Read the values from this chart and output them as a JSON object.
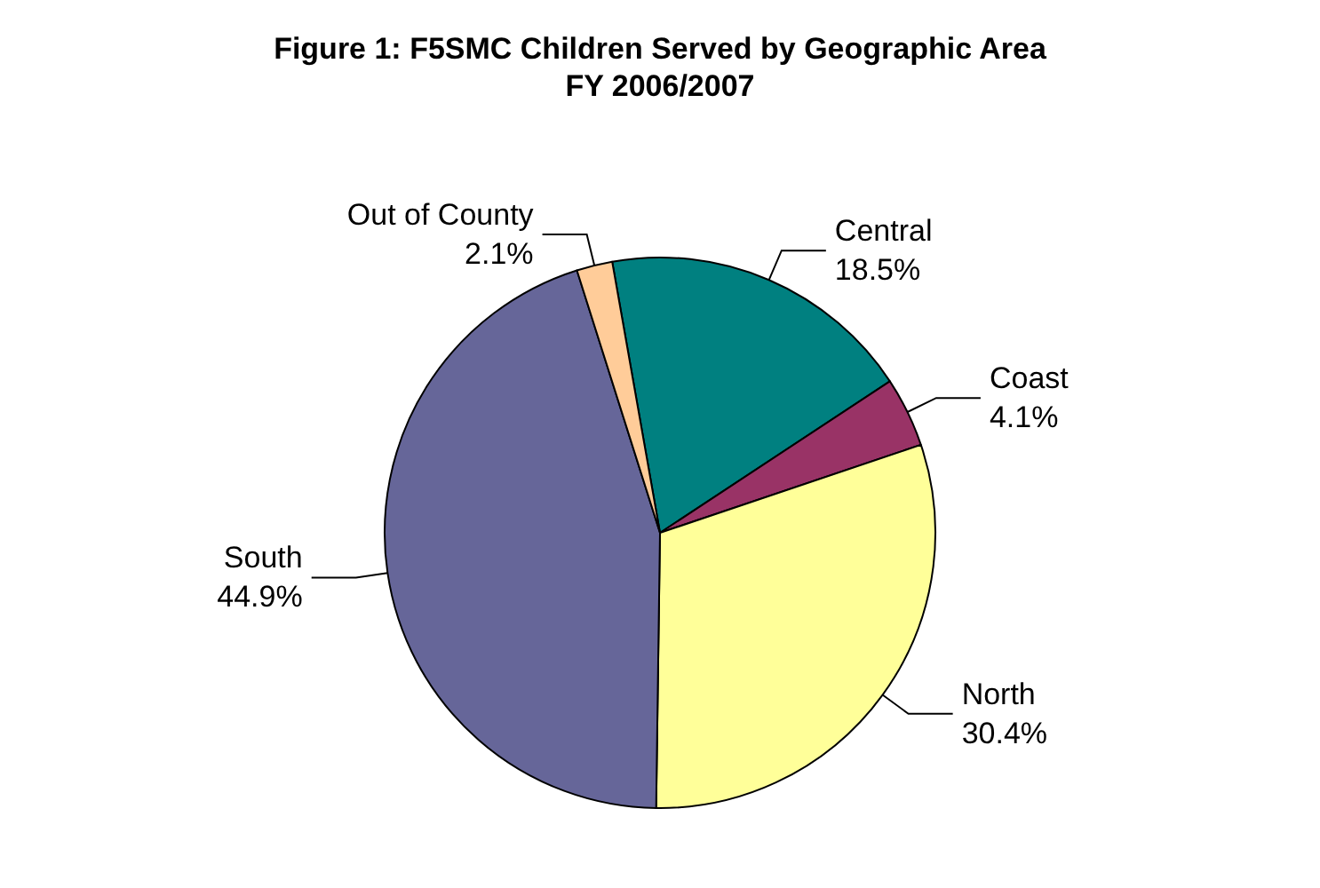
{
  "chart_data": {
    "type": "pie",
    "title": "Figure 1: F5SMC Children Served by Geographic Area",
    "subtitle": "FY 2006/2007",
    "categories": [
      "Central",
      "Coast",
      "North",
      "South",
      "Out of County"
    ],
    "values": [
      18.5,
      4.1,
      30.4,
      44.9,
      2.1
    ],
    "value_labels": [
      "18.5%",
      "4.1%",
      "30.4%",
      "44.9%",
      "2.1%"
    ],
    "colors": [
      "#008080",
      "#993366",
      "#ffff99",
      "#666699",
      "#ffcc99"
    ],
    "legend": false
  }
}
